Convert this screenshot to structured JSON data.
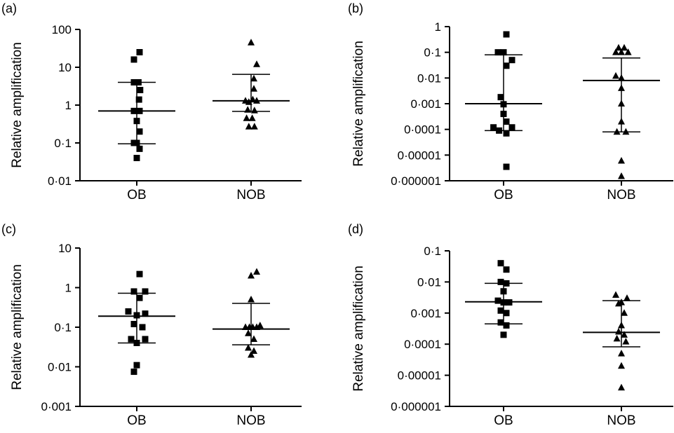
{
  "chart_data": [
    {
      "panel_label": "(a)",
      "type": "scatter",
      "scale": "log",
      "ylabel": "Relative amplification",
      "categories": [
        "OB",
        "NOB"
      ],
      "y_ticks": [
        100,
        10,
        1,
        0.1,
        0.01
      ],
      "y_tick_labels": [
        "100",
        "10",
        "1",
        "0·1",
        "0·01"
      ],
      "ylim": [
        0.01,
        100
      ],
      "series": [
        {
          "category": "OB",
          "marker": "square",
          "points": [
            {
              "x": -0.05,
              "y": 16
            },
            {
              "x": 0.05,
              "y": 25
            },
            {
              "x": -0.05,
              "y": 4
            },
            {
              "x": 0.03,
              "y": 4
            },
            {
              "x": 0.06,
              "y": 2.5
            },
            {
              "x": 0.04,
              "y": 1.4
            },
            {
              "x": -0.05,
              "y": 0.7
            },
            {
              "x": 0.05,
              "y": 0.7
            },
            {
              "x": 0.0,
              "y": 0.38
            },
            {
              "x": 0.05,
              "y": 0.2
            },
            {
              "x": -0.05,
              "y": 0.1
            },
            {
              "x": 0.0,
              "y": 0.1
            },
            {
              "x": 0.05,
              "y": 0.07
            },
            {
              "x": 0.0,
              "y": 0.04
            }
          ],
          "median": 0.7,
          "q1": 0.095,
          "q3": 4
        },
        {
          "category": "NOB",
          "marker": "triangle",
          "points": [
            {
              "x": 0.0,
              "y": 45
            },
            {
              "x": 0.1,
              "y": 12
            },
            {
              "x": 0.05,
              "y": 5
            },
            {
              "x": 0.05,
              "y": 2.7
            },
            {
              "x": -0.1,
              "y": 1.3
            },
            {
              "x": 0.03,
              "y": 1.4
            },
            {
              "x": -0.04,
              "y": 1.2
            },
            {
              "x": 0.1,
              "y": 1.3
            },
            {
              "x": -0.06,
              "y": 0.75
            },
            {
              "x": 0.06,
              "y": 0.72
            },
            {
              "x": -0.08,
              "y": 0.45
            },
            {
              "x": 0.02,
              "y": 0.45
            },
            {
              "x": -0.04,
              "y": 0.27
            },
            {
              "x": 0.06,
              "y": 0.27
            }
          ],
          "median": 1.3,
          "q1": 0.68,
          "q3": 6.5
        }
      ]
    },
    {
      "panel_label": "(b)",
      "type": "scatter",
      "scale": "log",
      "ylabel": "Relative amplification",
      "categories": [
        "OB",
        "NOB"
      ],
      "y_ticks": [
        1,
        0.1,
        0.01,
        0.001,
        0.0001,
        1e-05,
        1e-06
      ],
      "y_tick_labels": [
        "1",
        "0·1",
        "0·01",
        "0·001",
        "0·0001",
        "0·00001",
        "0·000001"
      ],
      "ylim": [
        1e-06,
        1
      ],
      "series": [
        {
          "category": "OB",
          "marker": "square",
          "points": [
            {
              "x": 0.05,
              "y": 0.5
            },
            {
              "x": -0.1,
              "y": 0.1
            },
            {
              "x": 0.0,
              "y": 0.1
            },
            {
              "x": 0.05,
              "y": 0.03
            },
            {
              "x": 0.15,
              "y": 0.05
            },
            {
              "x": -0.05,
              "y": 0.0018
            },
            {
              "x": 0.0,
              "y": 0.00095
            },
            {
              "x": 0.0,
              "y": 0.0004
            },
            {
              "x": 0.05,
              "y": 0.0002
            },
            {
              "x": -0.18,
              "y": 0.00012
            },
            {
              "x": -0.08,
              "y": 9e-05
            },
            {
              "x": 0.05,
              "y": 7e-05
            },
            {
              "x": 0.15,
              "y": 0.00012
            },
            {
              "x": 0.05,
              "y": 3.5e-06
            }
          ],
          "median": 0.001,
          "q1": 9e-05,
          "q3": 0.08
        },
        {
          "category": "NOB",
          "marker": "triangle",
          "points": [
            {
              "x": -0.05,
              "y": 0.15
            },
            {
              "x": 0.05,
              "y": 0.15
            },
            {
              "x": -0.1,
              "y": 0.1
            },
            {
              "x": 0.0,
              "y": 0.1
            },
            {
              "x": 0.12,
              "y": 0.1
            },
            {
              "x": 0.0,
              "y": 0.01
            },
            {
              "x": -0.1,
              "y": 0.012
            },
            {
              "x": 0.0,
              "y": 0.004
            },
            {
              "x": 0.0,
              "y": 0.001
            },
            {
              "x": 0.0,
              "y": 0.0002
            },
            {
              "x": -0.08,
              "y": 8e-05
            },
            {
              "x": 0.08,
              "y": 8e-05
            },
            {
              "x": 0.0,
              "y": 6e-06
            },
            {
              "x": 0.0,
              "y": 1.5e-06
            }
          ],
          "median": 0.008,
          "q1": 8e-05,
          "q3": 0.06
        }
      ]
    },
    {
      "panel_label": "(c)",
      "type": "scatter",
      "scale": "log",
      "ylabel": "Relative amplification",
      "categories": [
        "OB",
        "NOB"
      ],
      "y_ticks": [
        10,
        1,
        0.1,
        0.01,
        0.001
      ],
      "y_tick_labels": [
        "10",
        "1",
        "0·1",
        "0·01",
        "0·001"
      ],
      "ylim": [
        0.001,
        10
      ],
      "series": [
        {
          "category": "OB",
          "marker": "square",
          "points": [
            {
              "x": 0.05,
              "y": 2.2
            },
            {
              "x": -0.05,
              "y": 0.8
            },
            {
              "x": 0.15,
              "y": 0.8
            },
            {
              "x": 0.05,
              "y": 0.55
            },
            {
              "x": -0.15,
              "y": 0.25
            },
            {
              "x": 0.0,
              "y": 0.2
            },
            {
              "x": 0.15,
              "y": 0.22
            },
            {
              "x": -0.05,
              "y": 0.12
            },
            {
              "x": 0.1,
              "y": 0.1
            },
            {
              "x": -0.1,
              "y": 0.05
            },
            {
              "x": 0.0,
              "y": 0.04
            },
            {
              "x": 0.15,
              "y": 0.05
            },
            {
              "x": 0.0,
              "y": 0.011
            },
            {
              "x": -0.05,
              "y": 0.0075
            }
          ],
          "median": 0.19,
          "q1": 0.04,
          "q3": 0.72
        },
        {
          "category": "NOB",
          "marker": "triangle",
          "points": [
            {
              "x": 0.0,
              "y": 2.0
            },
            {
              "x": 0.1,
              "y": 2.5
            },
            {
              "x": 0.0,
              "y": 0.5
            },
            {
              "x": -0.1,
              "y": 0.1
            },
            {
              "x": -0.03,
              "y": 0.1
            },
            {
              "x": 0.03,
              "y": 0.1
            },
            {
              "x": 0.1,
              "y": 0.1
            },
            {
              "x": 0.16,
              "y": 0.11
            },
            {
              "x": -0.05,
              "y": 0.07
            },
            {
              "x": 0.05,
              "y": 0.05
            },
            {
              "x": -0.05,
              "y": 0.03
            },
            {
              "x": 0.05,
              "y": 0.025
            },
            {
              "x": 0.0,
              "y": 0.02
            }
          ],
          "median": 0.09,
          "q1": 0.036,
          "q3": 0.4
        }
      ]
    },
    {
      "panel_label": "(d)",
      "type": "scatter",
      "scale": "log",
      "ylabel": "Relative amplification",
      "categories": [
        "OB",
        "NOB"
      ],
      "y_ticks": [
        0.1,
        0.01,
        0.001,
        0.0001,
        1e-05,
        1e-06
      ],
      "y_tick_labels": [
        "0·1",
        "0·01",
        "0·001",
        "0·0001",
        "0·00001",
        "0·000001"
      ],
      "ylim": [
        1e-06,
        0.1
      ],
      "series": [
        {
          "category": "OB",
          "marker": "square",
          "points": [
            {
              "x": -0.05,
              "y": 0.04
            },
            {
              "x": 0.05,
              "y": 0.025
            },
            {
              "x": -0.05,
              "y": 0.01
            },
            {
              "x": 0.05,
              "y": 0.009
            },
            {
              "x": 0.0,
              "y": 0.005
            },
            {
              "x": -0.1,
              "y": 0.0025
            },
            {
              "x": 0.0,
              "y": 0.0022
            },
            {
              "x": 0.1,
              "y": 0.0022
            },
            {
              "x": -0.05,
              "y": 0.0012
            },
            {
              "x": 0.05,
              "y": 0.001
            },
            {
              "x": -0.05,
              "y": 0.0005
            },
            {
              "x": 0.05,
              "y": 0.0004
            },
            {
              "x": 0.0,
              "y": 0.0002
            }
          ],
          "median": 0.0023,
          "q1": 0.00045,
          "q3": 0.009
        },
        {
          "category": "NOB",
          "marker": "triangle",
          "points": [
            {
              "x": -0.1,
              "y": 0.0038
            },
            {
              "x": 0.1,
              "y": 0.003
            },
            {
              "x": 0.0,
              "y": 0.0022
            },
            {
              "x": -0.05,
              "y": 0.002
            },
            {
              "x": 0.05,
              "y": 0.001
            },
            {
              "x": 0.0,
              "y": 0.0004
            },
            {
              "x": -0.05,
              "y": 0.00025
            },
            {
              "x": 0.05,
              "y": 0.0002
            },
            {
              "x": -0.08,
              "y": 0.00015
            },
            {
              "x": 0.08,
              "y": 0.00012
            },
            {
              "x": 0.0,
              "y": 5e-05
            },
            {
              "x": 0.0,
              "y": 2e-05
            },
            {
              "x": 0.0,
              "y": 4e-06
            }
          ],
          "median": 0.00024,
          "q1": 8.2e-05,
          "q3": 0.0025
        }
      ]
    }
  ]
}
